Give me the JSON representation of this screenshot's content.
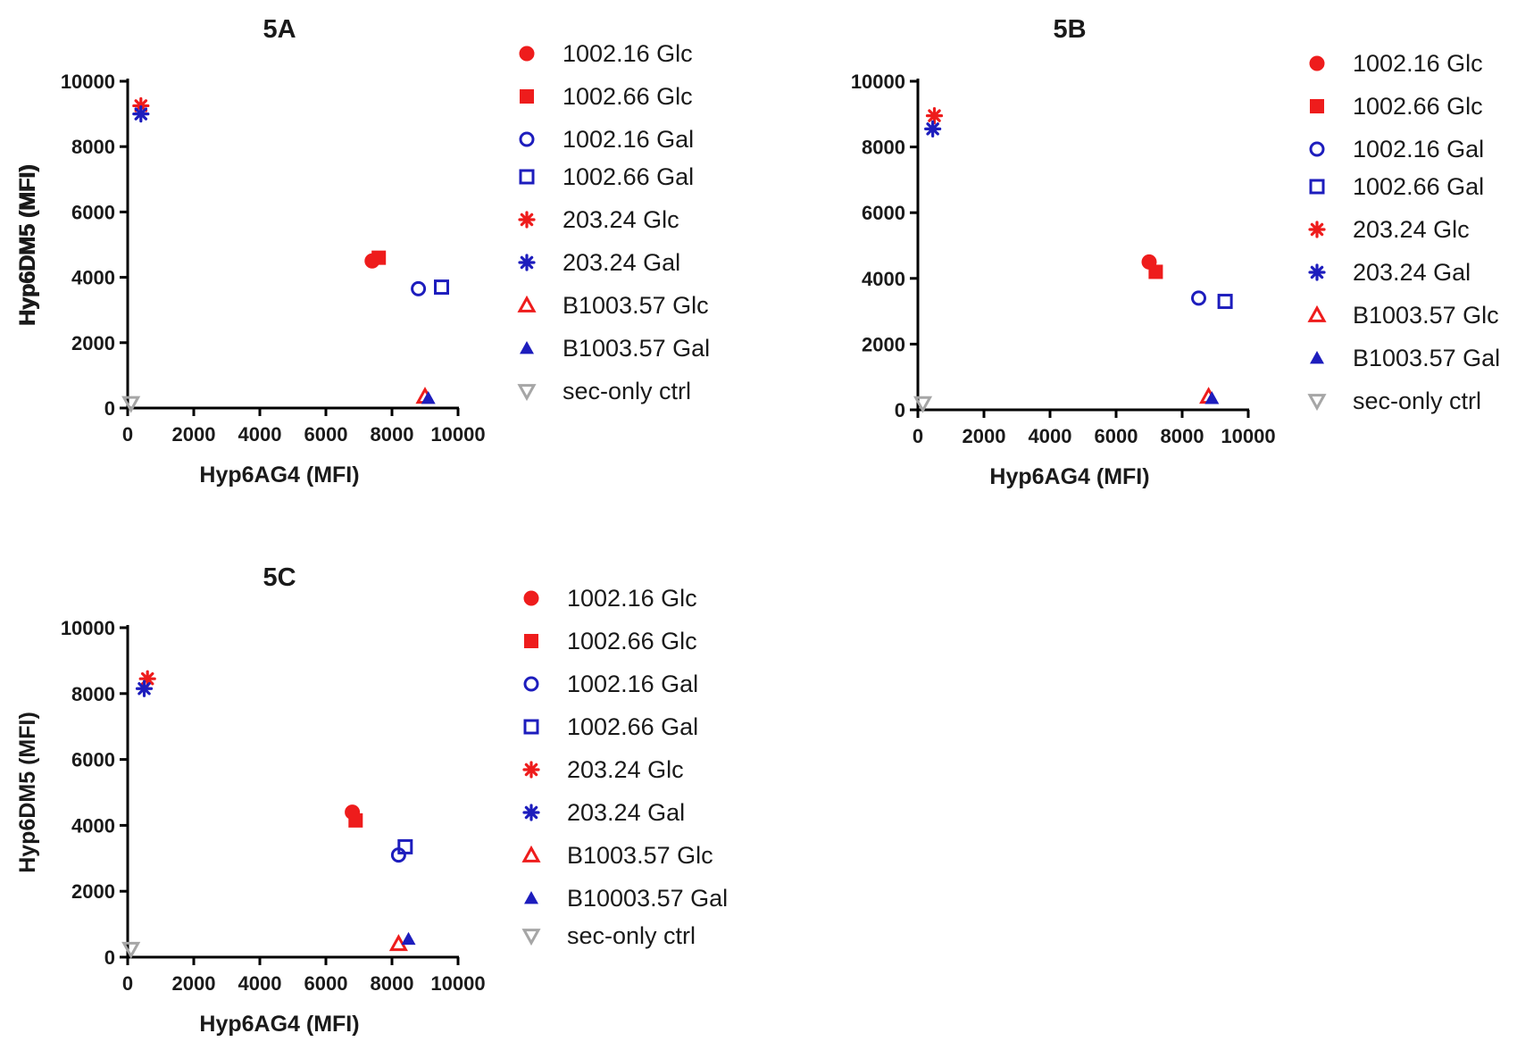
{
  "chart_data": [
    {
      "type": "scatter",
      "title": "5A",
      "xlabel": "Hyp6AG4 (MFI)",
      "ylabel": "Hyp6DM5 (MFI)",
      "xlim": [
        0,
        10000
      ],
      "ylim": [
        0,
        10000
      ],
      "xticks": [
        "0",
        "2000",
        "4000",
        "6000",
        "8000",
        "10000"
      ],
      "yticks": [
        "0",
        "2000",
        "4000",
        "6000",
        "8000",
        "10000"
      ],
      "series": [
        {
          "name": "1002.16 Glc",
          "marker": "circle-filled",
          "color": "#ee1c1c",
          "x": 7400,
          "y": 4500
        },
        {
          "name": "1002.66 Glc",
          "marker": "square-filled",
          "color": "#ee1c1c",
          "x": 7600,
          "y": 4600
        },
        {
          "name": "1002.16 Gal",
          "marker": "circle-open",
          "color": "#1d1dbd",
          "x": 8800,
          "y": 3650
        },
        {
          "name": "1002.66 Gal",
          "marker": "square-open",
          "color": "#1d1dbd",
          "x": 9500,
          "y": 3700
        },
        {
          "name": "203.24 Glc",
          "marker": "star",
          "color": "#ee1c1c",
          "x": 400,
          "y": 9250
        },
        {
          "name": "203.24 Gal",
          "marker": "star",
          "color": "#1d1dbd",
          "x": 400,
          "y": 9000
        },
        {
          "name": "B1003.57 Glc",
          "marker": "triangle-open",
          "color": "#ee1c1c",
          "x": 9000,
          "y": 350
        },
        {
          "name": "B1003.57 Gal",
          "marker": "triangle-filled",
          "color": "#1d1dbd",
          "x": 9100,
          "y": 300
        },
        {
          "name": "sec-only ctrl",
          "marker": "triangle-down-open",
          "color": "#a6a6a6",
          "x": 100,
          "y": 150
        }
      ]
    },
    {
      "type": "scatter",
      "title": "5B",
      "xlabel": "Hyp6AG4 (MFI)",
      "ylabel": "Hyp6DM5 (MFI)",
      "xlim": [
        0,
        10000
      ],
      "ylim": [
        0,
        10000
      ],
      "xticks": [
        "0",
        "2000",
        "4000",
        "6000",
        "8000",
        "10000"
      ],
      "yticks": [
        "0",
        "2000",
        "4000",
        "6000",
        "8000",
        "10000"
      ],
      "series": [
        {
          "name": "1002.16 Glc",
          "marker": "circle-filled",
          "color": "#ee1c1c",
          "x": 7000,
          "y": 4500
        },
        {
          "name": "1002.66 Glc",
          "marker": "square-filled",
          "color": "#ee1c1c",
          "x": 7200,
          "y": 4200
        },
        {
          "name": "1002.16 Gal",
          "marker": "circle-open",
          "color": "#1d1dbd",
          "x": 8500,
          "y": 3400
        },
        {
          "name": "1002.66 Gal",
          "marker": "square-open",
          "color": "#1d1dbd",
          "x": 9300,
          "y": 3300
        },
        {
          "name": "203.24 Glc",
          "marker": "star",
          "color": "#ee1c1c",
          "x": 500,
          "y": 8950
        },
        {
          "name": "203.24 Gal",
          "marker": "star",
          "color": "#1d1dbd",
          "x": 450,
          "y": 8550
        },
        {
          "name": "B1003.57 Glc",
          "marker": "triangle-open",
          "color": "#ee1c1c",
          "x": 8800,
          "y": 400
        },
        {
          "name": "B1003.57 Gal",
          "marker": "triangle-filled",
          "color": "#1d1dbd",
          "x": 8900,
          "y": 350
        },
        {
          "name": "sec-only ctrl",
          "marker": "triangle-down-open",
          "color": "#a6a6a6",
          "x": 150,
          "y": 200
        }
      ]
    },
    {
      "type": "scatter",
      "title": "5C",
      "xlabel": "Hyp6AG4 (MFI)",
      "ylabel": "Hyp6DM5 (MFI)",
      "xlim": [
        0,
        10000
      ],
      "ylim": [
        0,
        10000
      ],
      "xticks": [
        "0",
        "2000",
        "4000",
        "6000",
        "8000",
        "10000"
      ],
      "yticks": [
        "0",
        "2000",
        "4000",
        "6000",
        "8000",
        "10000"
      ],
      "series": [
        {
          "name": "1002.16 Glc",
          "marker": "circle-filled",
          "color": "#ee1c1c",
          "x": 6800,
          "y": 4400
        },
        {
          "name": "1002.66 Glc",
          "marker": "square-filled",
          "color": "#ee1c1c",
          "x": 6900,
          "y": 4150
        },
        {
          "name": "1002.16 Gal",
          "marker": "circle-open",
          "color": "#1d1dbd",
          "x": 8200,
          "y": 3100
        },
        {
          "name": "1002.66 Gal",
          "marker": "square-open",
          "color": "#1d1dbd",
          "x": 8400,
          "y": 3350
        },
        {
          "name": "203.24 Glc",
          "marker": "star",
          "color": "#ee1c1c",
          "x": 600,
          "y": 8450
        },
        {
          "name": "203.24 Gal",
          "marker": "star",
          "color": "#1d1dbd",
          "x": 500,
          "y": 8150
        },
        {
          "name": "B1003.57 Glc",
          "marker": "triangle-open",
          "color": "#ee1c1c",
          "x": 8200,
          "y": 400
        },
        {
          "name": "B10003.57 Gal",
          "marker": "triangle-filled",
          "color": "#1d1dbd",
          "x": 8500,
          "y": 550
        },
        {
          "name": "sec-only ctrl",
          "marker": "triangle-down-open",
          "color": "#a6a6a6",
          "x": 100,
          "y": 250
        }
      ]
    }
  ]
}
